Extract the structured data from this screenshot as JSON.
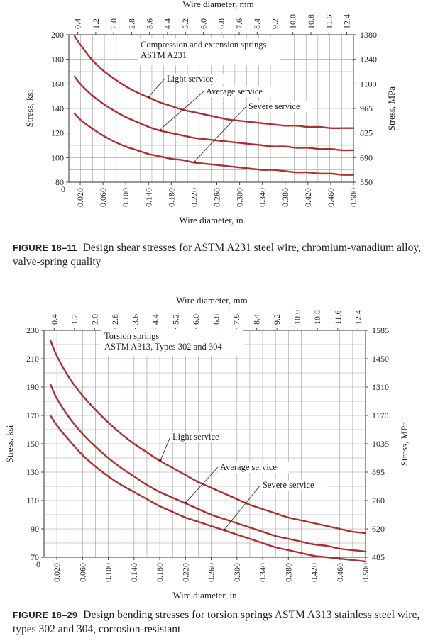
{
  "style": {
    "curve_color": "#a83232",
    "grid_color": "#9a9a9a",
    "frame_color": "#444444"
  },
  "figures": [
    {
      "label": "FIGURE 18–11",
      "caption": "Design shear stresses for ASTM A231 steel wire, chromium-vanadium alloy, valve-spring quality"
    },
    {
      "label": "FIGURE 18–29",
      "caption": "Design bending stresses for torsion springs ASTM A313 stainless steel wire, types 302 and 304, corrosion-resistant"
    }
  ],
  "chart_data": [
    {
      "type": "line",
      "annotation": "Compression and extension springs\nASTM A231",
      "xlabel": "Wire diameter, in",
      "ylabel": "Stress, ksi",
      "x2label": "Wire diameter, mm",
      "y2label": "Stress, MPa",
      "xlim": [
        0,
        0.5
      ],
      "ylim": [
        80,
        200
      ],
      "xticks": [
        "0.020",
        "0.060",
        "0.100",
        "0.140",
        "0.180",
        "0.220",
        "0.260",
        "0.300",
        "0.340",
        "0.380",
        "0.420",
        "0.460",
        "0.500"
      ],
      "xtick_zero": "0",
      "yticks": [
        80,
        100,
        120,
        140,
        160,
        180,
        200
      ],
      "x2ticks": [
        "0.4",
        "1.2",
        "2.0",
        "2.8",
        "3.6",
        "4.4",
        "5.2",
        "6.0",
        "6.8",
        "7.6",
        "8.4",
        "9.2",
        "10.0",
        "10.8",
        "11.6",
        "12.4"
      ],
      "y2ticks": [
        "550",
        "690",
        "825",
        "965",
        "1100",
        "1240",
        "1380"
      ],
      "grid": true,
      "x": [
        0.01,
        0.02,
        0.04,
        0.06,
        0.08,
        0.1,
        0.12,
        0.14,
        0.16,
        0.18,
        0.2,
        0.22,
        0.24,
        0.26,
        0.28,
        0.3,
        0.32,
        0.34,
        0.36,
        0.38,
        0.4,
        0.42,
        0.44,
        0.46,
        0.48,
        0.5
      ],
      "series": [
        {
          "name": "Light service",
          "values": [
            199,
            192,
            180,
            171,
            164,
            158,
            153,
            149,
            145,
            142,
            139,
            137,
            135,
            133,
            131,
            130,
            129,
            128,
            127,
            126,
            126,
            125,
            125,
            124,
            124,
            124
          ]
        },
        {
          "name": "Average service",
          "values": [
            166,
            160,
            151,
            144,
            138,
            133,
            129,
            125,
            122,
            120,
            118,
            116,
            115,
            114,
            113,
            112,
            111,
            110,
            109,
            109,
            108,
            108,
            107,
            107,
            106,
            106
          ]
        },
        {
          "name": "Severe service",
          "values": [
            136,
            131,
            124,
            118,
            113,
            109,
            106,
            103,
            101,
            99,
            98,
            96,
            95,
            94,
            93,
            92,
            91,
            90,
            90,
            89,
            88,
            88,
            87,
            87,
            86,
            86
          ]
        }
      ]
    },
    {
      "type": "line",
      "annotation": "Torsion springs\nASTM A313, Types 302 and 304",
      "xlabel": "Wire diameter, in",
      "ylabel": "Stress, ksi",
      "x2label": "Wire diameter, mm",
      "y2label": "Stress, MPa",
      "xlim": [
        0,
        0.5
      ],
      "ylim": [
        70,
        230
      ],
      "xticks": [
        "0.020",
        "0.060",
        "0.100",
        "0.140",
        "0.180",
        "0.220",
        "0.260",
        "0.300",
        "0.340",
        "0.380",
        "0.420",
        "0.460",
        "0.500"
      ],
      "xtick_zero": "0",
      "yticks": [
        70,
        90,
        110,
        130,
        150,
        170,
        190,
        210,
        230
      ],
      "x2ticks": [
        "0.4",
        "1.2",
        "2.0",
        "2.8",
        "3.6",
        "4.4",
        "5.2",
        "6.0",
        "6.8",
        "7.6",
        "8.4",
        "9.2",
        "10.0",
        "10.8",
        "11.6",
        "12.4"
      ],
      "y2ticks": [
        "485",
        "620",
        "760",
        "895",
        "1035",
        "1170",
        "1310",
        "1450",
        "1585"
      ],
      "grid": true,
      "x": [
        0.01,
        0.02,
        0.04,
        0.06,
        0.08,
        0.1,
        0.12,
        0.14,
        0.16,
        0.18,
        0.2,
        0.22,
        0.24,
        0.26,
        0.28,
        0.3,
        0.32,
        0.34,
        0.36,
        0.38,
        0.4,
        0.42,
        0.44,
        0.46,
        0.48,
        0.5
      ],
      "series": [
        {
          "name": "Light service",
          "values": [
            223,
            212,
            196,
            184,
            174,
            165,
            157,
            150,
            144,
            138,
            133,
            128,
            123,
            119,
            115,
            111,
            107,
            104,
            101,
            98,
            96,
            94,
            92,
            90,
            88,
            87
          ]
        },
        {
          "name": "Average service",
          "values": [
            192,
            182,
            168,
            157,
            148,
            140,
            133,
            127,
            121,
            116,
            112,
            108,
            104,
            100,
            97,
            94,
            91,
            88,
            85,
            83,
            81,
            79,
            78,
            76,
            75,
            74
          ]
        },
        {
          "name": "Severe service",
          "values": [
            170,
            163,
            152,
            142,
            134,
            127,
            121,
            116,
            111,
            106,
            102,
            98,
            95,
            92,
            89,
            86,
            83,
            80,
            77,
            75,
            73,
            71,
            70,
            69,
            68,
            67
          ]
        }
      ]
    }
  ]
}
